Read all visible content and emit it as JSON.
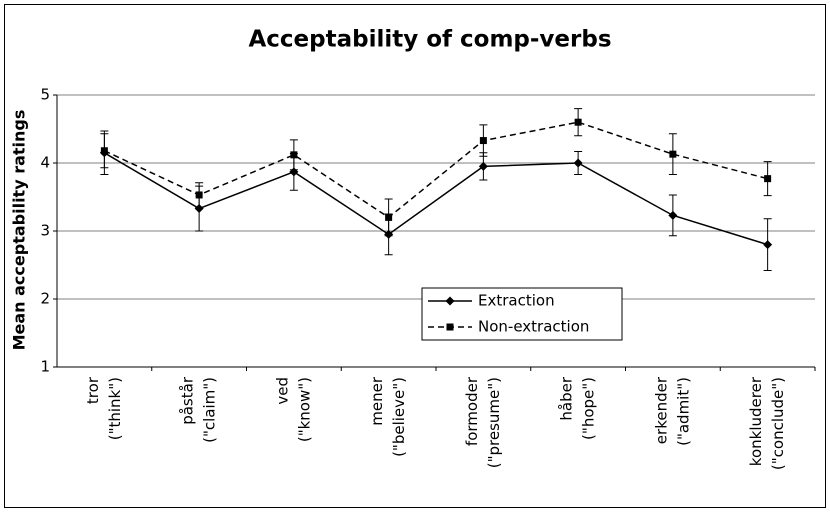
{
  "chart_data": {
    "type": "line",
    "title": "Acceptability of comp-verbs",
    "y_label": "Mean acceptability ratings",
    "categories": [
      [
        "tror",
        "(\"think\")"
      ],
      [
        "påstår",
        "(\"claim\")"
      ],
      [
        "ved",
        "(\"know\")"
      ],
      [
        "mener",
        "(\"believe\")"
      ],
      [
        "formoder",
        "(\"presume\")"
      ],
      [
        "håber",
        "(\"hope\")"
      ],
      [
        "erkender",
        "(\"admit\")"
      ],
      [
        "konkluderer",
        "(\"conclude\")"
      ]
    ],
    "series": [
      {
        "name": "Extraction",
        "color": "#000000",
        "dash": false,
        "marker": "diamond",
        "values": [
          4.15,
          3.33,
          3.87,
          2.95,
          3.95,
          4.0,
          3.23,
          2.8
        ],
        "errors": [
          0.32,
          0.33,
          0.27,
          0.3,
          0.2,
          0.17,
          0.3,
          0.38
        ]
      },
      {
        "name": "Non-extraction",
        "color": "#000000",
        "dash": true,
        "marker": "square",
        "values": [
          4.18,
          3.53,
          4.12,
          3.2,
          4.33,
          4.6,
          4.13,
          3.77
        ],
        "errors": [
          0.25,
          0.18,
          0.22,
          0.27,
          0.23,
          0.2,
          0.3,
          0.25
        ]
      }
    ],
    "ylim": [
      1,
      5
    ],
    "yticks": [
      1,
      2,
      3,
      4,
      5
    ],
    "grid": true,
    "legend": "center"
  }
}
